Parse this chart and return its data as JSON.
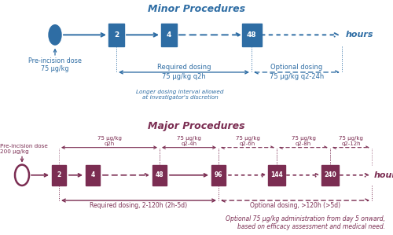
{
  "title_minor": "Minor Procedures",
  "title_major": "Major Procedures",
  "blue": "#2E6DA4",
  "maroon": "#7B2D52",
  "minor_pre_label": "Pre-incision dose\n75 μg/kg",
  "major_pre_label": "Pre-incision dose\n200 μg/kg",
  "hours_label": "hours",
  "minor_required_top": "Required dosing",
  "minor_required_bot": "75 μg/kg q2h",
  "minor_optional_top": "Optional dosing",
  "minor_optional_bot": "75 μg/kg q2-24h",
  "minor_italic": "Longer dosing interval allowed\nat investigator's discretion",
  "major_dosing_labels": [
    "75 μg/kg\nq2h",
    "75 μg/kg\nq2-4h",
    "75 μg/kg\nq2-6h",
    "75 μg/kg\nq2-8h",
    "75 μg/kg\nq2-12h"
  ],
  "major_required_label": "Required dosing, 2-120h (2h-5d)",
  "major_optional_label": "Optional dosing, >120h (>5d)",
  "major_italic": "Optional 75 μg/kg administration from day 5 onward,\nbased on efficacy assessment and medical need."
}
